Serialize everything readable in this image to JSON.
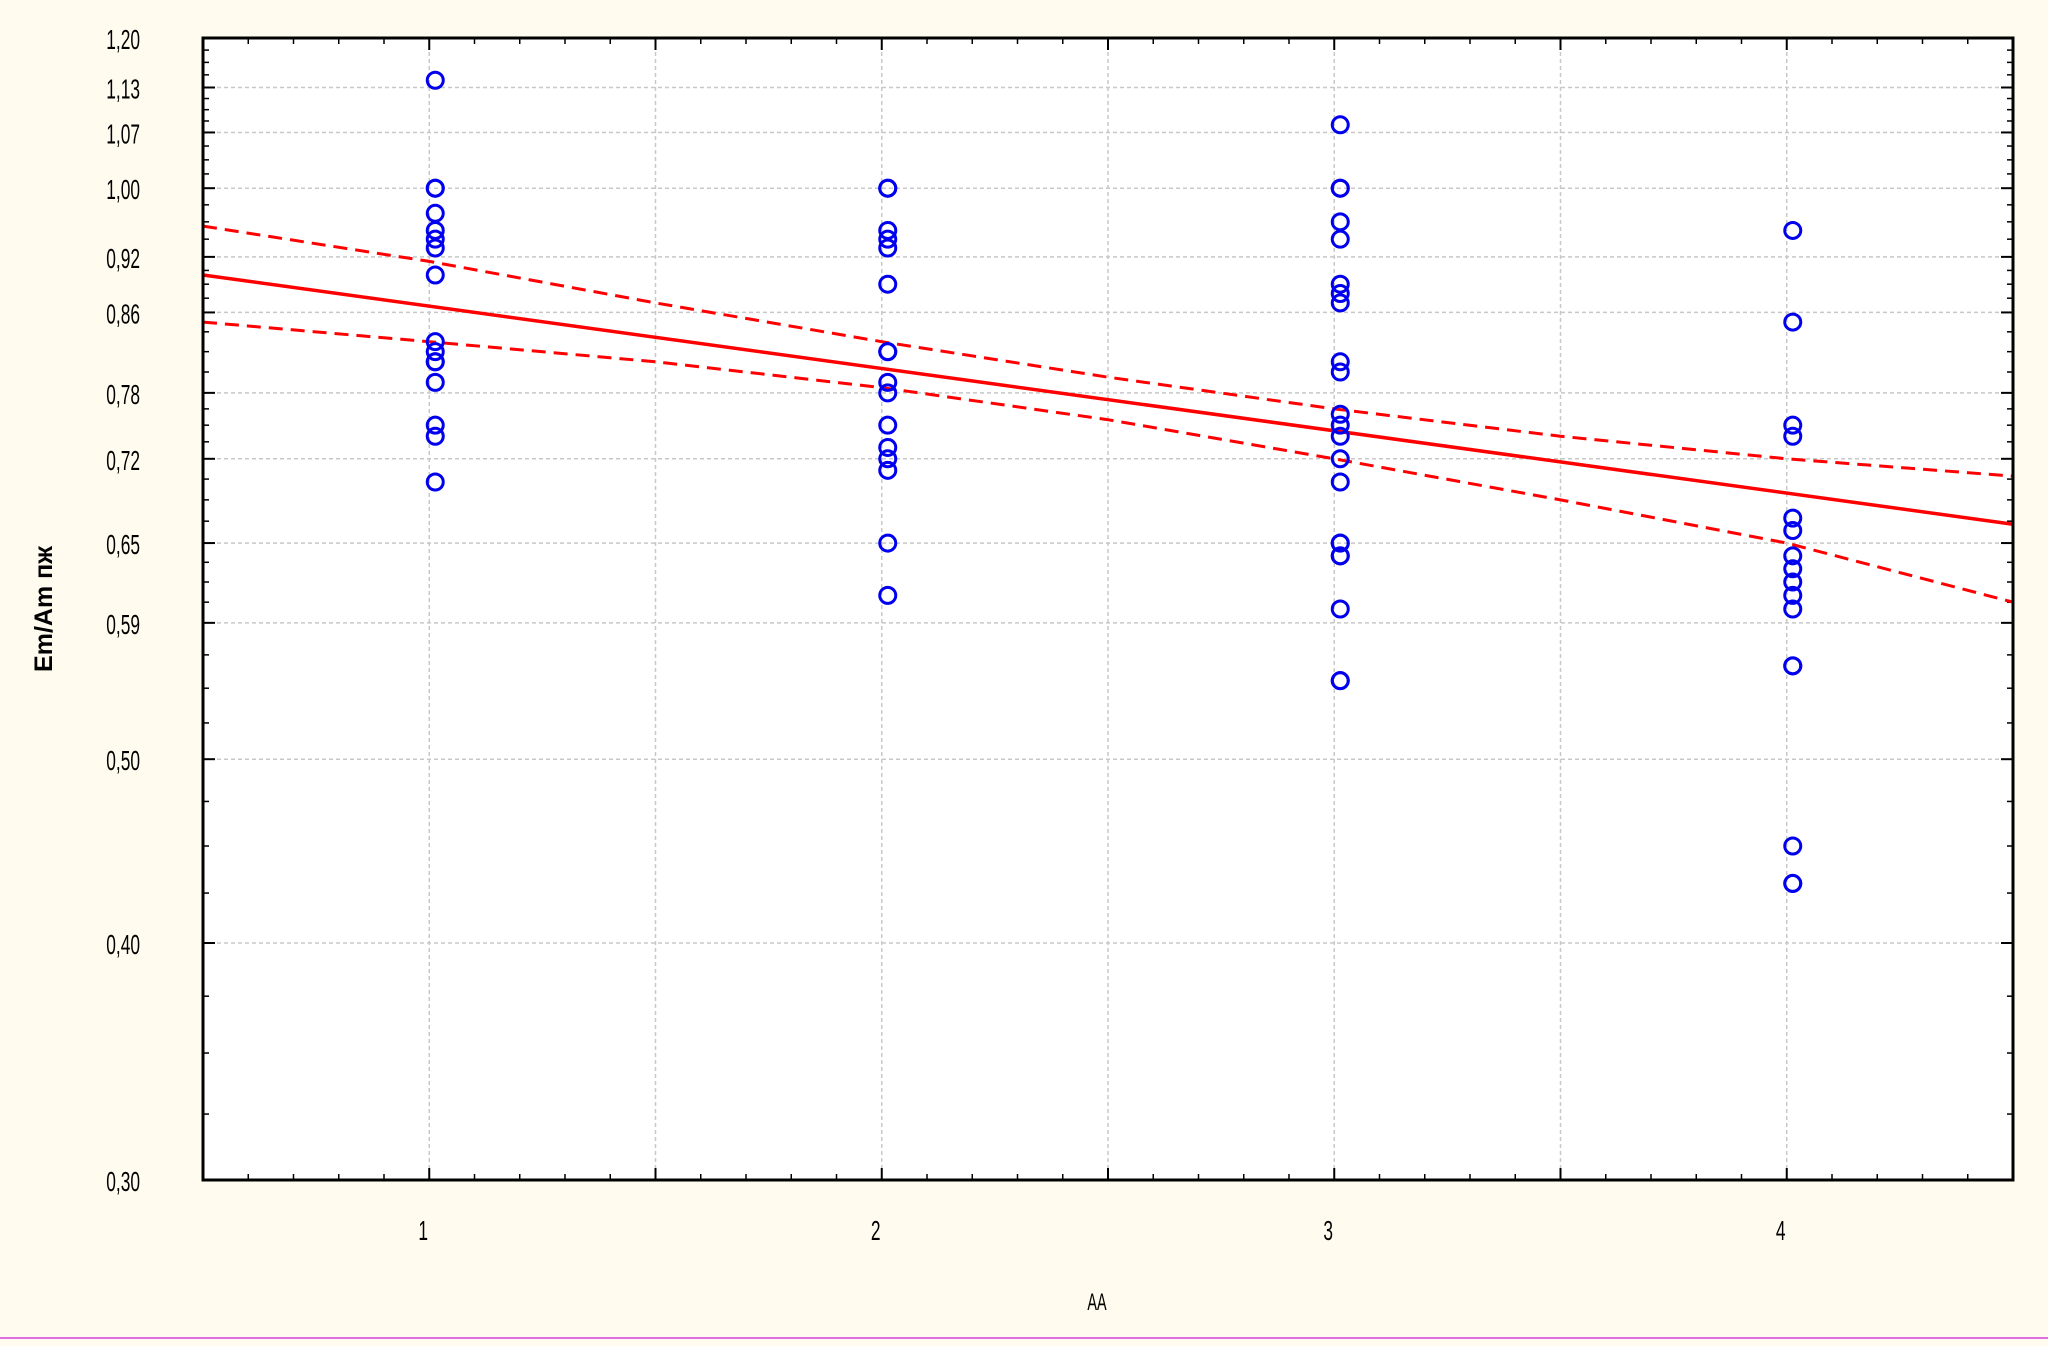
{
  "chart_data": {
    "type": "scatter",
    "title": "",
    "xlabel": "АА",
    "ylabel": "Em/Am пж",
    "xlim": [
      0.5,
      4.5
    ],
    "ylim": [
      0.3,
      1.2
    ],
    "x_ticks": [
      1,
      2,
      3,
      4
    ],
    "x_tick_labels": [
      "1",
      "2",
      "3",
      "4"
    ],
    "y_ticks": [
      0.3,
      0.4,
      0.5,
      0.59,
      0.65,
      0.72,
      0.78,
      0.86,
      0.92,
      1.0,
      1.07,
      1.13,
      1.2
    ],
    "y_tick_labels": [
      "0,30",
      "0,40",
      "0,50",
      "0,59",
      "0,65",
      "0,72",
      "0,78",
      "0,86",
      "0,92",
      "1,00",
      "1,07",
      "1,13",
      "1,20"
    ],
    "y_scale": "log",
    "grid": true,
    "points": {
      "marker_color": "#0000ee",
      "x": [
        1,
        1,
        1,
        1,
        1,
        1,
        1,
        1,
        1,
        1,
        1,
        1,
        1,
        1,
        1,
        1,
        2,
        2,
        2,
        2,
        2,
        2,
        2,
        2,
        2,
        2,
        2,
        2,
        2,
        2,
        2,
        2,
        3,
        3,
        3,
        3,
        3,
        3,
        3,
        3,
        3,
        3,
        3,
        3,
        3,
        3,
        3,
        3,
        3,
        3,
        3,
        3,
        3,
        3,
        4,
        4,
        4,
        4,
        4,
        4,
        4,
        4,
        4,
        4,
        4,
        4,
        4,
        4,
        4,
        4
      ],
      "y": [
        1.14,
        1.0,
        1.0,
        0.97,
        0.95,
        0.94,
        0.93,
        0.9,
        0.83,
        0.82,
        0.81,
        0.81,
        0.79,
        0.75,
        0.74,
        0.7,
        1.0,
        1.0,
        0.95,
        0.94,
        0.93,
        0.89,
        0.82,
        0.82,
        0.79,
        0.78,
        0.75,
        0.73,
        0.72,
        0.71,
        0.65,
        0.61,
        1.08,
        1.0,
        1.0,
        0.96,
        0.94,
        0.89,
        0.88,
        0.87,
        0.81,
        0.8,
        0.76,
        0.75,
        0.74,
        0.72,
        0.7,
        0.65,
        0.65,
        0.64,
        0.64,
        0.6,
        0.55,
        0.55,
        0.95,
        0.85,
        0.75,
        0.74,
        0.67,
        0.66,
        0.64,
        0.63,
        0.62,
        0.61,
        0.6,
        0.56,
        0.56,
        0.45,
        0.43,
        0.43
      ]
    },
    "fit_line": {
      "color": "#ff0000",
      "x": [
        0.5,
        4.5
      ],
      "y": [
        0.9,
        0.665
      ]
    },
    "confidence_bands": {
      "color": "#ff0000",
      "style": "dashed",
      "upper": {
        "x": [
          0.5,
          1.0,
          1.5,
          2.0,
          2.5,
          3.0,
          3.5,
          4.0,
          4.5
        ],
        "y": [
          0.955,
          0.915,
          0.87,
          0.83,
          0.795,
          0.765,
          0.74,
          0.72,
          0.705
        ]
      },
      "lower": {
        "x": [
          0.5,
          1.0,
          1.5,
          2.0,
          2.5,
          3.0,
          3.5,
          4.0,
          4.5
        ],
        "y": [
          0.85,
          0.83,
          0.81,
          0.785,
          0.755,
          0.72,
          0.685,
          0.65,
          0.605
        ]
      }
    }
  }
}
